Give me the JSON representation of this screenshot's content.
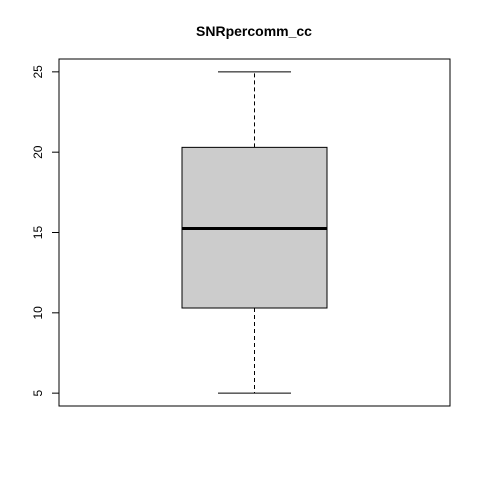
{
  "chart_data": {
    "type": "boxplot",
    "title": "SNRpercomm_cc",
    "xlabel": "",
    "ylabel": "",
    "ylim": [
      4.2,
      25.8
    ],
    "y_ticks": [
      5,
      10,
      15,
      20,
      25
    ],
    "y_tick_labels": [
      "5",
      "10",
      "15",
      "20",
      "25"
    ],
    "box": {
      "min": 5,
      "q1": 10.3,
      "median": 15.25,
      "q3": 20.3,
      "max": 25
    },
    "box_fill": "#cccccc",
    "line_color": "#000000"
  }
}
